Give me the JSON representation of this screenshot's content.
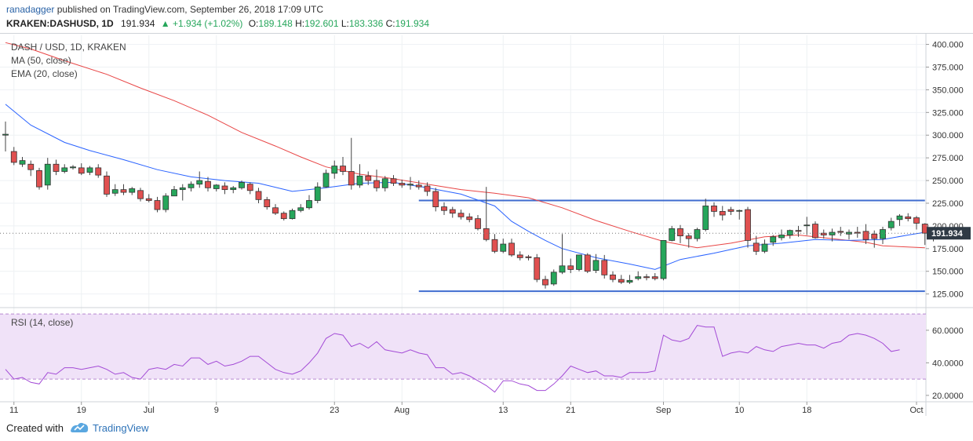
{
  "header": {
    "user": "ranadagger",
    "published_text": "published on TradingView.com, September 26, 2018 17:09 UTC",
    "symbol": "KRAKEN:DASHUSD, 1D",
    "price": "191.934",
    "change": "▲ +1.934 (+1.02%)",
    "o_label": "O:",
    "o_value": "189.148",
    "h_label": "H:",
    "h_value": "192.601",
    "l_label": "L:",
    "l_value": "183.336",
    "c_label": "C:",
    "c_value": "191.934"
  },
  "legend": {
    "title": "DASH / USD, 1D, KRAKEN",
    "ma": "MA (50, close)",
    "ema": "EMA (20, close)",
    "rsi": "RSI (14, close)"
  },
  "footer": {
    "created_with": "Created with",
    "brand": "TradingView"
  },
  "colors": {
    "up": "#26a65b",
    "down": "#e05050",
    "ma50": "#e84545",
    "ema20": "#2962ff",
    "hline": "#3f6ccf",
    "rsi": "#a34bd6",
    "rsi_band": "#f0e2f8"
  },
  "chart_data": {
    "type": "candlestick",
    "title": "DASH / USD, 1D, KRAKEN",
    "price_axis": {
      "ticks": [
        "400.000",
        "375.000",
        "350.000",
        "325.000",
        "300.000",
        "275.000",
        "250.000",
        "225.000",
        "200.000",
        "175.000",
        "150.000",
        "125.000"
      ],
      "range": [
        110,
        410
      ]
    },
    "x_ticks": [
      {
        "label": "11",
        "i": 1
      },
      {
        "label": "19",
        "i": 9
      },
      {
        "label": "Jul",
        "i": 17
      },
      {
        "label": "9",
        "i": 25
      },
      {
        "label": "23",
        "i": 39
      },
      {
        "label": "Aug",
        "i": 47
      },
      {
        "label": "13",
        "i": 59
      },
      {
        "label": "21",
        "i": 67
      },
      {
        "label": "Sep",
        "i": 78
      },
      {
        "label": "10",
        "i": 87
      },
      {
        "label": "18",
        "i": 95
      },
      {
        "label": "Oct",
        "i": 108
      }
    ],
    "last_price_label": "191.934",
    "candles": [
      [
        300,
        315,
        301,
        282
      ],
      [
        282,
        287,
        270,
        267
      ],
      [
        268,
        276,
        272,
        265
      ],
      [
        268,
        272,
        262,
        255
      ],
      [
        261,
        264,
        243,
        240
      ],
      [
        245,
        275,
        268,
        240
      ],
      [
        268,
        273,
        260,
        256
      ],
      [
        260,
        268,
        264,
        258
      ],
      [
        264,
        267,
        265,
        262
      ],
      [
        264,
        269,
        258,
        256
      ],
      [
        259,
        266,
        264,
        256
      ],
      [
        264,
        268,
        256,
        253
      ],
      [
        255,
        260,
        235,
        232
      ],
      [
        236,
        246,
        240,
        233
      ],
      [
        240,
        246,
        237,
        234
      ],
      [
        237,
        243,
        241,
        234
      ],
      [
        239,
        242,
        230,
        227
      ],
      [
        230,
        235,
        228,
        226
      ],
      [
        228,
        232,
        218,
        215
      ],
      [
        218,
        236,
        233,
        215
      ],
      [
        233,
        244,
        240,
        233
      ],
      [
        240,
        246,
        242,
        228
      ],
      [
        242,
        249,
        246,
        238
      ],
      [
        246,
        260,
        250,
        242
      ],
      [
        249,
        254,
        242,
        238
      ],
      [
        241,
        246,
        245,
        238
      ],
      [
        244,
        248,
        240,
        235
      ],
      [
        240,
        244,
        242,
        236
      ],
      [
        242,
        250,
        248,
        240
      ],
      [
        246,
        248,
        239,
        235
      ],
      [
        238,
        242,
        229,
        225
      ],
      [
        229,
        232,
        221,
        218
      ],
      [
        220,
        224,
        214,
        212
      ],
      [
        214,
        216,
        208,
        206
      ],
      [
        208,
        219,
        217,
        207
      ],
      [
        217,
        224,
        220,
        215
      ],
      [
        220,
        234,
        228,
        218
      ],
      [
        228,
        248,
        243,
        225
      ],
      [
        243,
        262,
        258,
        242
      ],
      [
        258,
        272,
        266,
        252
      ],
      [
        266,
        276,
        260,
        256
      ],
      [
        260,
        297,
        245,
        240
      ],
      [
        245,
        268,
        255,
        242
      ],
      [
        255,
        260,
        250,
        245
      ],
      [
        250,
        262,
        242,
        238
      ],
      [
        242,
        255,
        252,
        238
      ],
      [
        252,
        256,
        247,
        244
      ],
      [
        247,
        251,
        245,
        242
      ],
      [
        245,
        254,
        246,
        240
      ],
      [
        245,
        250,
        243,
        240
      ],
      [
        244,
        248,
        238,
        233
      ],
      [
        238,
        242,
        221,
        216
      ],
      [
        221,
        226,
        217,
        212
      ],
      [
        218,
        221,
        214,
        209
      ],
      [
        214,
        218,
        210,
        207
      ],
      [
        210,
        214,
        207,
        204
      ],
      [
        208,
        212,
        197,
        195
      ],
      [
        197,
        243,
        185,
        183
      ],
      [
        185,
        191,
        172,
        170
      ],
      [
        172,
        186,
        180,
        170
      ],
      [
        181,
        186,
        168,
        166
      ],
      [
        168,
        172,
        165,
        162
      ],
      [
        166,
        168,
        165,
        162
      ],
      [
        165,
        169,
        141,
        138
      ],
      [
        141,
        145,
        135,
        131
      ],
      [
        136,
        152,
        149,
        134
      ],
      [
        149,
        191,
        156,
        147
      ],
      [
        156,
        164,
        152,
        148
      ],
      [
        152,
        165,
        168,
        150
      ],
      [
        168,
        170,
        150,
        148
      ],
      [
        151,
        169,
        162,
        148
      ],
      [
        162,
        168,
        146,
        142
      ],
      [
        146,
        150,
        141,
        138
      ],
      [
        141,
        146,
        138,
        136
      ],
      [
        138,
        146,
        140,
        136
      ],
      [
        142,
        150,
        144,
        140
      ],
      [
        144,
        147,
        143,
        140
      ],
      [
        144,
        148,
        142,
        140
      ],
      [
        142,
        178,
        184,
        140
      ],
      [
        184,
        200,
        197,
        183
      ],
      [
        197,
        201,
        189,
        181
      ],
      [
        189,
        192,
        186,
        176
      ],
      [
        186,
        198,
        196,
        183
      ],
      [
        196,
        230,
        222,
        194
      ],
      [
        222,
        226,
        216,
        210
      ],
      [
        216,
        222,
        212,
        206
      ],
      [
        218,
        221,
        216,
        212
      ],
      [
        217,
        218,
        217,
        207
      ],
      [
        218,
        221,
        184,
        176
      ],
      [
        181,
        189,
        172,
        168
      ],
      [
        172,
        185,
        180,
        170
      ],
      [
        182,
        190,
        188,
        178
      ],
      [
        187,
        196,
        190,
        184
      ],
      [
        190,
        196,
        195,
        186
      ],
      [
        195,
        200,
        194,
        188
      ],
      [
        201,
        210,
        201,
        190
      ],
      [
        202,
        205,
        187,
        186
      ],
      [
        192,
        196,
        190,
        186
      ],
      [
        190,
        197,
        193,
        183
      ],
      [
        194,
        199,
        193,
        189
      ],
      [
        191,
        196,
        193,
        185
      ],
      [
        193,
        199,
        192,
        187
      ],
      [
        194,
        202,
        185,
        180
      ],
      [
        191,
        195,
        186,
        176
      ],
      [
        186,
        199,
        196,
        180
      ],
      [
        198,
        209,
        205,
        195
      ],
      [
        207,
        213,
        211,
        200
      ],
      [
        210,
        214,
        208,
        205
      ],
      [
        209,
        211,
        203,
        196
      ],
      [
        202,
        203,
        192,
        179
      ],
      [
        193,
        196,
        192,
        183
      ]
    ],
    "ma50": [
      [
        0,
        402
      ],
      [
        3,
        395
      ],
      [
        7,
        382
      ],
      [
        12,
        367
      ],
      [
        16,
        352
      ],
      [
        20,
        338
      ],
      [
        24,
        322
      ],
      [
        28,
        303
      ],
      [
        32,
        288
      ],
      [
        35,
        276
      ],
      [
        38,
        265
      ],
      [
        42,
        257
      ],
      [
        46,
        252
      ],
      [
        50,
        246
      ],
      [
        54,
        240
      ],
      [
        58,
        236
      ],
      [
        62,
        231
      ],
      [
        66,
        220
      ],
      [
        70,
        206
      ],
      [
        74,
        194
      ],
      [
        78,
        183
      ],
      [
        82,
        176
      ],
      [
        86,
        181
      ],
      [
        90,
        188
      ],
      [
        94,
        190
      ],
      [
        98,
        186
      ],
      [
        102,
        182
      ],
      [
        104,
        178
      ],
      [
        109,
        176
      ]
    ],
    "ema20": [
      [
        0,
        334
      ],
      [
        3,
        311
      ],
      [
        7,
        292
      ],
      [
        10,
        283
      ],
      [
        14,
        273
      ],
      [
        18,
        262
      ],
      [
        22,
        254
      ],
      [
        26,
        250
      ],
      [
        30,
        247
      ],
      [
        34,
        238
      ],
      [
        38,
        242
      ],
      [
        42,
        247
      ],
      [
        46,
        248
      ],
      [
        50,
        242
      ],
      [
        54,
        235
      ],
      [
        58,
        222
      ],
      [
        60,
        205
      ],
      [
        62,
        194
      ],
      [
        64,
        184
      ],
      [
        66,
        175
      ],
      [
        70,
        165
      ],
      [
        74,
        158
      ],
      [
        77,
        152
      ],
      [
        80,
        163
      ],
      [
        84,
        170
      ],
      [
        88,
        178
      ],
      [
        92,
        181
      ],
      [
        96,
        185
      ],
      [
        100,
        184
      ],
      [
        104,
        185
      ],
      [
        107,
        190
      ],
      [
        109,
        193
      ]
    ],
    "hlines": [
      {
        "value": 228,
        "from": 49,
        "to": 109
      },
      {
        "value": 128,
        "from": 49,
        "to": 109
      }
    ],
    "rsi": {
      "label": "RSI (14, close)",
      "ticks": [
        "60.0000",
        "40.0000",
        "20.0000"
      ],
      "bands": [
        30,
        70
      ],
      "range": [
        18,
        72
      ],
      "values": [
        36,
        30,
        31,
        28,
        27,
        34,
        33,
        37,
        37,
        36,
        37,
        38,
        36,
        33,
        34,
        31,
        30,
        36,
        37,
        36,
        39,
        38,
        43,
        43,
        39,
        41,
        38,
        39,
        41,
        44,
        44,
        40,
        36,
        34,
        33,
        35,
        40,
        46,
        55,
        58,
        57,
        50,
        52,
        49,
        53,
        48,
        47,
        46,
        48,
        46,
        45,
        37,
        37,
        33,
        34,
        32,
        29,
        26,
        22,
        29,
        29,
        27,
        26,
        23,
        23,
        27,
        32,
        38,
        36,
        34,
        35,
        32,
        32,
        31,
        34,
        34,
        34,
        35,
        57,
        54,
        53,
        55,
        63,
        62,
        62,
        44,
        46,
        47,
        46,
        50,
        48,
        47,
        50,
        51,
        52,
        51,
        51,
        49,
        52,
        53,
        57,
        58,
        57,
        55,
        52,
        47,
        48
      ]
    }
  }
}
